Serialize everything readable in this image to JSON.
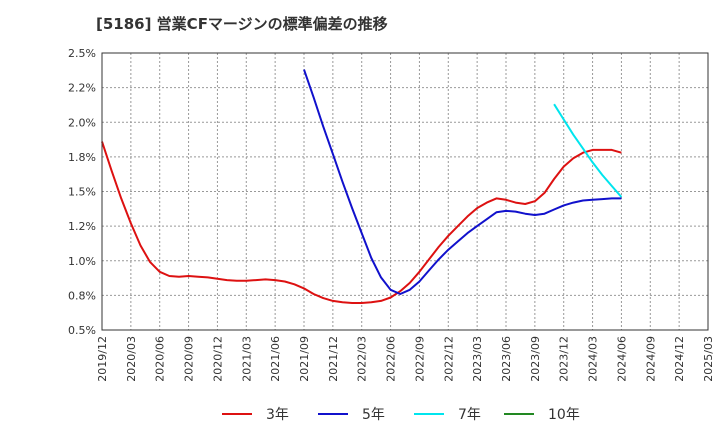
{
  "chart_data": {
    "type": "line",
    "title": "[5186]  営業CFマージンの標準偏差の推移",
    "xlabel": "",
    "ylabel": "",
    "ylim": [
      0.5,
      2.5
    ],
    "yticks": [
      "0.5%",
      "0.8%",
      "1.0%",
      "1.2%",
      "1.5%",
      "1.8%",
      "2.0%",
      "2.2%",
      "2.5%"
    ],
    "xticks": [
      "2019/12",
      "2020/03",
      "2020/06",
      "2020/09",
      "2020/12",
      "2021/03",
      "2021/06",
      "2021/09",
      "2021/12",
      "2022/03",
      "2022/06",
      "2022/09",
      "2022/12",
      "2023/03",
      "2023/06",
      "2023/09",
      "2023/12",
      "2024/03",
      "2024/06",
      "2024/09",
      "2024/12",
      "2025/03"
    ],
    "grid": true,
    "legend_position": "bottom",
    "series": [
      {
        "name": "3年",
        "color": "#dd1111",
        "points": [
          [
            "2019/12",
            1.86
          ],
          [
            "2020/01",
            1.65
          ],
          [
            "2020/02",
            1.45
          ],
          [
            "2020/03",
            1.27
          ],
          [
            "2020/04",
            1.11
          ],
          [
            "2020/05",
            0.99
          ],
          [
            "2020/06",
            0.92
          ],
          [
            "2020/07",
            0.89
          ],
          [
            "2020/08",
            0.885
          ],
          [
            "2020/09",
            0.89
          ],
          [
            "2020/10",
            0.885
          ],
          [
            "2020/11",
            0.88
          ],
          [
            "2020/12",
            0.87
          ],
          [
            "2021/01",
            0.86
          ],
          [
            "2021/02",
            0.855
          ],
          [
            "2021/03",
            0.855
          ],
          [
            "2021/04",
            0.86
          ],
          [
            "2021/05",
            0.865
          ],
          [
            "2021/06",
            0.86
          ],
          [
            "2021/07",
            0.85
          ],
          [
            "2021/08",
            0.83
          ],
          [
            "2021/09",
            0.8
          ],
          [
            "2021/10",
            0.76
          ],
          [
            "2021/11",
            0.73
          ],
          [
            "2021/12",
            0.71
          ],
          [
            "2022/01",
            0.7
          ],
          [
            "2022/02",
            0.695
          ],
          [
            "2022/03",
            0.695
          ],
          [
            "2022/04",
            0.7
          ],
          [
            "2022/05",
            0.71
          ],
          [
            "2022/06",
            0.735
          ],
          [
            "2022/07",
            0.78
          ],
          [
            "2022/08",
            0.84
          ],
          [
            "2022/09",
            0.92
          ],
          [
            "2022/10",
            1.01
          ],
          [
            "2022/11",
            1.1
          ],
          [
            "2022/12",
            1.18
          ],
          [
            "2023/01",
            1.25
          ],
          [
            "2023/02",
            1.32
          ],
          [
            "2023/03",
            1.38
          ],
          [
            "2023/04",
            1.42
          ],
          [
            "2023/05",
            1.45
          ],
          [
            "2023/06",
            1.44
          ],
          [
            "2023/07",
            1.42
          ],
          [
            "2023/08",
            1.41
          ],
          [
            "2023/09",
            1.43
          ],
          [
            "2023/10",
            1.49
          ],
          [
            "2023/11",
            1.59
          ],
          [
            "2023/12",
            1.68
          ],
          [
            "2024/01",
            1.74
          ],
          [
            "2024/02",
            1.78
          ],
          [
            "2024/03",
            1.8
          ],
          [
            "2024/04",
            1.8
          ],
          [
            "2024/05",
            1.8
          ],
          [
            "2024/06",
            1.78
          ]
        ]
      },
      {
        "name": "5年",
        "color": "#1111cc",
        "points": [
          [
            "2021/09",
            2.38
          ],
          [
            "2021/10",
            2.18
          ],
          [
            "2021/11",
            1.97
          ],
          [
            "2021/12",
            1.77
          ],
          [
            "2022/01",
            1.57
          ],
          [
            "2022/02",
            1.38
          ],
          [
            "2022/03",
            1.2
          ],
          [
            "2022/04",
            1.02
          ],
          [
            "2022/05",
            0.88
          ],
          [
            "2022/06",
            0.79
          ],
          [
            "2022/07",
            0.76
          ],
          [
            "2022/08",
            0.79
          ],
          [
            "2022/09",
            0.85
          ],
          [
            "2022/10",
            0.93
          ],
          [
            "2022/11",
            1.01
          ],
          [
            "2022/12",
            1.08
          ],
          [
            "2023/01",
            1.14
          ],
          [
            "2023/02",
            1.2
          ],
          [
            "2023/03",
            1.25
          ],
          [
            "2023/04",
            1.3
          ],
          [
            "2023/05",
            1.35
          ],
          [
            "2023/06",
            1.36
          ],
          [
            "2023/07",
            1.355
          ],
          [
            "2023/08",
            1.34
          ],
          [
            "2023/09",
            1.33
          ],
          [
            "2023/10",
            1.34
          ],
          [
            "2023/11",
            1.37
          ],
          [
            "2023/12",
            1.4
          ],
          [
            "2024/01",
            1.42
          ],
          [
            "2024/02",
            1.435
          ],
          [
            "2024/03",
            1.44
          ],
          [
            "2024/04",
            1.445
          ],
          [
            "2024/05",
            1.45
          ],
          [
            "2024/06",
            1.45
          ]
        ]
      },
      {
        "name": "7年",
        "color": "#00e5ee",
        "points": [
          [
            "2023/11",
            2.13
          ],
          [
            "2023/12",
            2.02
          ],
          [
            "2024/01",
            1.91
          ],
          [
            "2024/02",
            1.81
          ],
          [
            "2024/03",
            1.71
          ],
          [
            "2024/04",
            1.62
          ],
          [
            "2024/05",
            1.54
          ],
          [
            "2024/06",
            1.46
          ]
        ]
      },
      {
        "name": "10年",
        "color": "#228822",
        "points": []
      }
    ]
  }
}
